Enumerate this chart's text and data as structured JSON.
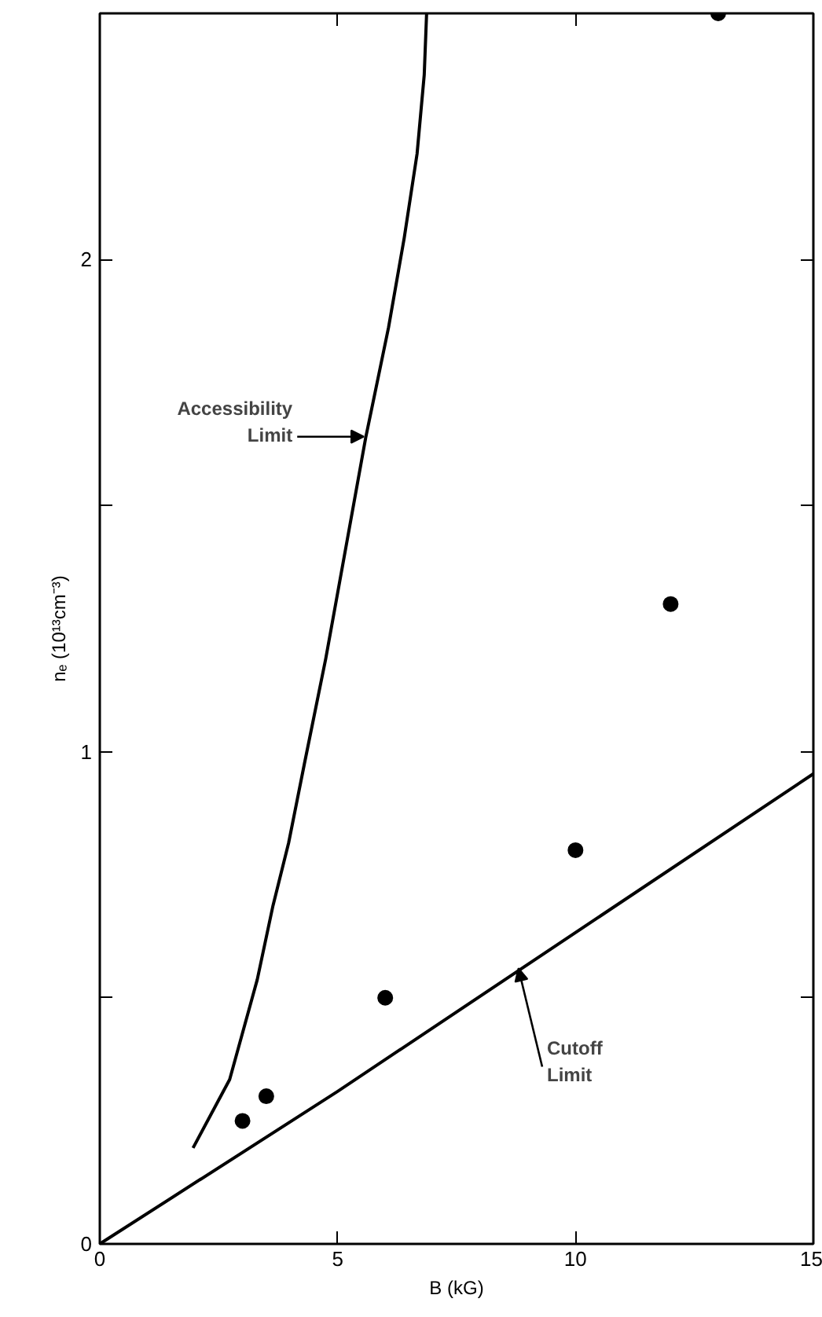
{
  "chart_data": {
    "type": "scatter",
    "xlabel": "B (kG)",
    "ylabel": "nₑ (10¹³cm⁻³)",
    "xlim": [
      0,
      15
    ],
    "ylim": [
      0,
      2.5
    ],
    "xticks": [
      0,
      5,
      10,
      15
    ],
    "yticks": [
      0,
      {
        "value": 0.5,
        "label": null
      },
      1,
      {
        "value": 1.5,
        "label": null
      },
      2
    ],
    "grid": false,
    "marker": "circle",
    "series": [
      {
        "color": "#000000",
        "x": [
          3,
          3.5,
          6,
          10,
          12,
          13
        ],
        "values": [
          0.25,
          0.3,
          0.5,
          0.8,
          1.3,
          2.5
        ]
      },
      {
        "type": "line",
        "color": "#000000",
        "line_style": "solid",
        "marker": "none",
        "x": [
          1.96,
          2.73,
          3.31,
          3.64,
          3.97,
          4.3,
          4.75,
          5.59,
          6.07,
          6.4,
          6.67,
          6.82,
          6.87
        ],
        "values": [
          0.195,
          0.334,
          0.537,
          0.687,
          0.815,
          0.975,
          1.189,
          1.638,
          1.862,
          2.044,
          2.215,
          2.375,
          2.5
        ]
      },
      {
        "type": "line",
        "color": "#000000",
        "line_style": "solid",
        "marker": "none",
        "x": [
          0,
          5,
          15
        ],
        "values": [
          0,
          0.31,
          0.955
        ]
      }
    ],
    "annotations": [
      {
        "text": "Accessibility\nLimit",
        "x": 5.55,
        "y": 1.64
      },
      {
        "text": "Cutoff\nLimit",
        "x": 8.8,
        "y": 0.56
      }
    ]
  }
}
